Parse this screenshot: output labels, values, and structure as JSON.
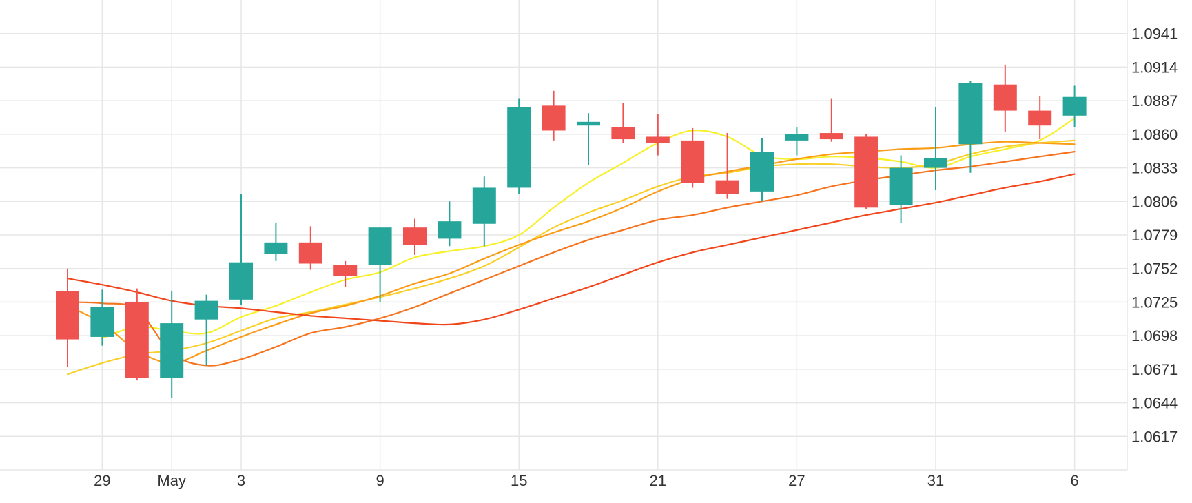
{
  "chart_data": {
    "type": "candlestick",
    "title": "",
    "xlabel": "",
    "ylabel": "",
    "ylim": [
      1.059,
      1.0968
    ],
    "grid": true,
    "legend": "none",
    "y_ticks": [
      "1.0617",
      "1.0644",
      "1.0671",
      "1.0698",
      "1.0725",
      "1.0752",
      "1.0779",
      "1.0806",
      "1.0833",
      "1.0860",
      "1.0887",
      "1.0914",
      "1.0941"
    ],
    "x_ticks": [
      {
        "label": "29",
        "index": 1
      },
      {
        "label": "May",
        "index": 3
      },
      {
        "label": "3",
        "index": 5
      },
      {
        "label": "9",
        "index": 9
      },
      {
        "label": "15",
        "index": 13
      },
      {
        "label": "21",
        "index": 17
      },
      {
        "label": "27",
        "index": 21
      },
      {
        "label": "31",
        "index": 25
      },
      {
        "label": "6",
        "index": 29
      }
    ],
    "up_color": "#26a69a",
    "down_color": "#ef5350",
    "candles": [
      {
        "open": 1.0734,
        "high": 1.0752,
        "low": 1.0673,
        "close": 1.0695
      },
      {
        "open": 1.0697,
        "high": 1.0735,
        "low": 1.069,
        "close": 1.0721
      },
      {
        "open": 1.0725,
        "high": 1.0736,
        "low": 1.0662,
        "close": 1.0664
      },
      {
        "open": 1.0664,
        "high": 1.0734,
        "low": 1.0648,
        "close": 1.0708
      },
      {
        "open": 1.0711,
        "high": 1.0731,
        "low": 1.0674,
        "close": 1.0726
      },
      {
        "open": 1.0727,
        "high": 1.0812,
        "low": 1.0723,
        "close": 1.0757
      },
      {
        "open": 1.0764,
        "high": 1.0789,
        "low": 1.0758,
        "close": 1.0773
      },
      {
        "open": 1.0773,
        "high": 1.0786,
        "low": 1.0751,
        "close": 1.0756
      },
      {
        "open": 1.0755,
        "high": 1.0758,
        "low": 1.0737,
        "close": 1.0746
      },
      {
        "open": 1.0755,
        "high": 1.0783,
        "low": 1.0725,
        "close": 1.0785
      },
      {
        "open": 1.0785,
        "high": 1.0792,
        "low": 1.0763,
        "close": 1.0771
      },
      {
        "open": 1.0776,
        "high": 1.0806,
        "low": 1.077,
        "close": 1.079
      },
      {
        "open": 1.0788,
        "high": 1.0826,
        "low": 1.077,
        "close": 1.0817
      },
      {
        "open": 1.0817,
        "high": 1.0889,
        "low": 1.0812,
        "close": 1.0882
      },
      {
        "open": 1.0883,
        "high": 1.0895,
        "low": 1.0855,
        "close": 1.0863
      },
      {
        "open": 1.0867,
        "high": 1.0877,
        "low": 1.0835,
        "close": 1.087
      },
      {
        "open": 1.0866,
        "high": 1.0885,
        "low": 1.0853,
        "close": 1.0856
      },
      {
        "open": 1.0858,
        "high": 1.0876,
        "low": 1.0843,
        "close": 1.0853
      },
      {
        "open": 1.0855,
        "high": 1.0865,
        "low": 1.0817,
        "close": 1.0821
      },
      {
        "open": 1.0823,
        "high": 1.0861,
        "low": 1.0808,
        "close": 1.0812
      },
      {
        "open": 1.0814,
        "high": 1.0857,
        "low": 1.0806,
        "close": 1.0846
      },
      {
        "open": 1.0855,
        "high": 1.0866,
        "low": 1.0843,
        "close": 1.086
      },
      {
        "open": 1.0861,
        "high": 1.0889,
        "low": 1.0854,
        "close": 1.0856
      },
      {
        "open": 1.0858,
        "high": 1.086,
        "low": 1.08,
        "close": 1.0801
      },
      {
        "open": 1.0803,
        "high": 1.0843,
        "low": 1.0789,
        "close": 1.0833
      },
      {
        "open": 1.0833,
        "high": 1.0882,
        "low": 1.0815,
        "close": 1.0841
      },
      {
        "open": 1.0852,
        "high": 1.0903,
        "low": 1.0829,
        "close": 1.0901
      },
      {
        "open": 1.09,
        "high": 1.0916,
        "low": 1.0862,
        "close": 1.0879
      },
      {
        "open": 1.0879,
        "high": 1.0891,
        "low": 1.0856,
        "close": 1.0867
      },
      {
        "open": 1.0875,
        "high": 1.0899,
        "low": 1.0866,
        "close": 1.089
      }
    ],
    "series": [
      {
        "color": "#f7f02a",
        "values": [
          null,
          1.0696,
          1.0705,
          1.0702,
          1.07,
          1.0713,
          1.0722,
          1.0733,
          1.0743,
          1.0749,
          1.0761,
          1.0766,
          1.077,
          1.0779,
          1.0801,
          1.0821,
          1.0837,
          1.0853,
          1.0863,
          1.0858,
          1.0843,
          1.084,
          1.0842,
          1.0841,
          1.0838,
          1.0833,
          1.0842,
          1.0848,
          1.0855,
          1.0873
        ]
      },
      {
        "color": "#f9d02a",
        "values": [
          1.0667,
          1.0676,
          1.0683,
          1.0686,
          1.0692,
          1.0702,
          1.0712,
          1.0717,
          1.0723,
          1.0729,
          1.0736,
          1.0744,
          1.0754,
          1.0769,
          1.0785,
          1.0797,
          1.0807,
          1.0818,
          1.0826,
          1.0829,
          1.0834,
          1.0836,
          1.0836,
          1.0834,
          1.0833,
          1.0836,
          1.0844,
          1.085,
          1.0853,
          1.0855
        ]
      },
      {
        "color": "#fa9c16",
        "values": [
          1.0722,
          1.0708,
          1.0686,
          1.0676,
          1.0686,
          1.0697,
          1.0707,
          1.0716,
          1.0722,
          1.073,
          1.074,
          1.0748,
          1.076,
          1.0771,
          1.0781,
          1.079,
          1.0801,
          1.0814,
          1.0824,
          1.083,
          1.0835,
          1.084,
          1.0844,
          1.0846,
          1.0848,
          1.0849,
          1.0852,
          1.0854,
          1.0853,
          1.0852
        ]
      },
      {
        "color": "#f6731d",
        "values": [
          1.0725,
          1.0724,
          1.0719,
          1.0684,
          1.0674,
          1.0679,
          1.0689,
          1.07,
          1.0705,
          1.0712,
          1.0721,
          1.0732,
          1.0743,
          1.0754,
          1.0765,
          1.0775,
          1.0783,
          1.0791,
          1.0795,
          1.0801,
          1.0806,
          1.0811,
          1.0818,
          1.0823,
          1.0827,
          1.0831,
          1.0834,
          1.0838,
          1.0842,
          1.0846
        ]
      },
      {
        "color": "#f0461b",
        "values": [
          1.0744,
          1.0739,
          1.0733,
          1.0726,
          1.0722,
          1.072,
          1.0717,
          1.0714,
          1.0712,
          1.071,
          1.0708,
          1.0707,
          1.0711,
          1.0719,
          1.0728,
          1.0737,
          1.0747,
          1.0757,
          1.0765,
          1.0771,
          1.0777,
          1.0783,
          1.0789,
          1.0795,
          1.08,
          1.0805,
          1.0811,
          1.0817,
          1.0822,
          1.0828
        ]
      }
    ]
  }
}
